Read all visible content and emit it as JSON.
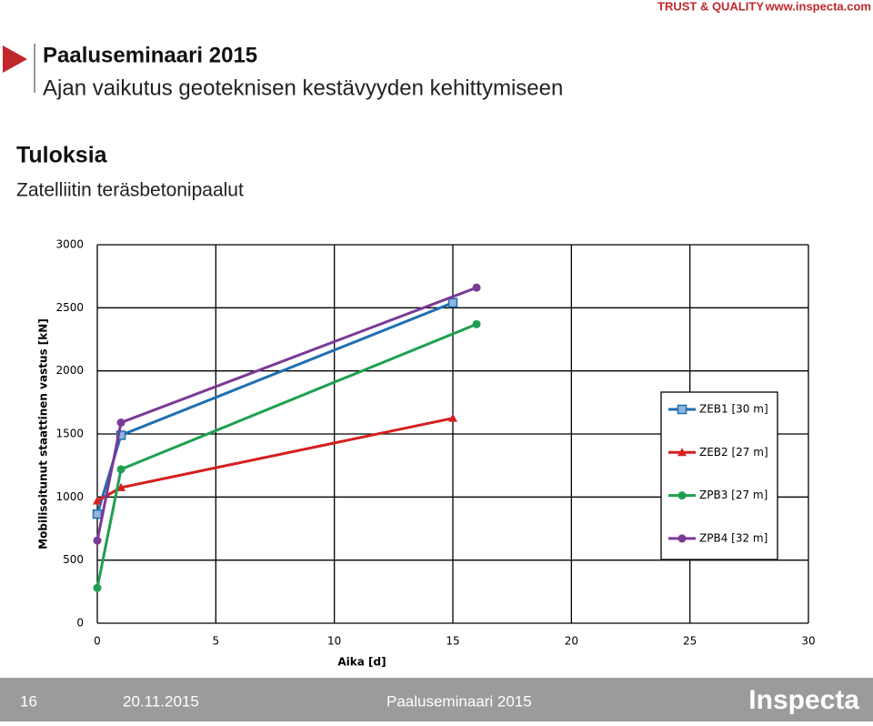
{
  "header": {
    "brand": "TRUST & QUALITY",
    "url": "www.inspecta.com",
    "title": "Paaluseminaari 2015",
    "subtitle": "Ajan vaikutus geoteknisen kestävyyden kehittymiseen",
    "section": "Tuloksia",
    "section_subtitle": "Zatelliitin teräsbetonipaalut"
  },
  "chart_data": {
    "type": "line",
    "x_label": "Aika [d]",
    "y_label": "Mobilisoitunut staattinen vastus [kN]",
    "xlim": [
      0,
      30
    ],
    "xticks": [
      0,
      5,
      10,
      15,
      20,
      25,
      30
    ],
    "ylim": [
      0,
      3000
    ],
    "yticks": [
      0,
      500,
      1000,
      1500,
      2000,
      2500,
      3000
    ],
    "grid": true,
    "legend": "right",
    "series": [
      {
        "name": "ZEB1 [30 m]",
        "color": "#1f6fb0",
        "marker": "square",
        "x": [
          0,
          1,
          15
        ],
        "values": [
          865,
          1490,
          2540
        ]
      },
      {
        "name": "ZEB2 [27 m]",
        "color": "#d42020",
        "marker": "triangle",
        "x": [
          0,
          1,
          15
        ],
        "values": [
          970,
          1075,
          1625
        ]
      },
      {
        "name": "ZPB3 [27 m]",
        "color": "#1fa050",
        "marker": "circle",
        "x": [
          0,
          1,
          16
        ],
        "values": [
          280,
          1220,
          2370
        ]
      },
      {
        "name": "ZPB4 [32 m]",
        "color": "#7b3a96",
        "marker": "circle",
        "x": [
          0,
          1,
          16
        ],
        "values": [
          655,
          1590,
          2660
        ]
      }
    ]
  },
  "footer": {
    "page": "16",
    "date": "20.11.2015",
    "event": "Paaluseminaari 2015",
    "logo": "Inspecta"
  }
}
